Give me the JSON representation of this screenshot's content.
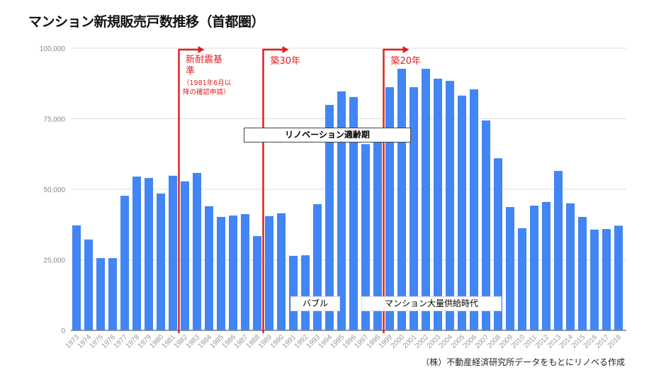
{
  "chart_data": {
    "type": "bar",
    "title": "マンション新規販売戸数推移（首都圏）",
    "xlabel": "",
    "ylabel": "",
    "ylim": [
      0,
      100000
    ],
    "yticks": [
      0,
      25000,
      50000,
      75000,
      100000
    ],
    "ytick_labels": [
      "0",
      "25,000",
      "50,000",
      "75,000",
      "100,000"
    ],
    "grid": true,
    "bar_color": "#4285f4",
    "categories": [
      "1973",
      "1974",
      "1975",
      "1976",
      "1977",
      "1978",
      "1979",
      "1980",
      "1981",
      "1982",
      "1983",
      "1984",
      "1985",
      "1986",
      "1987",
      "1988",
      "1989",
      "1990",
      "1991",
      "1992",
      "1993",
      "1994",
      "1995",
      "1996",
      "1997",
      "1998",
      "1999",
      "2000",
      "2001",
      "2002",
      "2003",
      "2004",
      "2005",
      "2006",
      "2007",
      "2008",
      "2009",
      "2010",
      "2011",
      "2012",
      "2013",
      "2014",
      "2015",
      "2016",
      "2017",
      "2018"
    ],
    "values": [
      37200,
      32200,
      25600,
      25600,
      47700,
      54500,
      54000,
      48500,
      54800,
      52800,
      55800,
      44000,
      40200,
      40700,
      41200,
      33400,
      40500,
      41500,
      26400,
      26600,
      44700,
      79900,
      84700,
      82700,
      66000,
      67000,
      86200,
      92700,
      86200,
      92700,
      89200,
      88400,
      83200,
      85400,
      74400,
      61000,
      43700,
      36200,
      44200,
      45500,
      56500,
      45000,
      40200,
      35700,
      35900,
      37100
    ],
    "markers": [
      {
        "after": "1981",
        "label": "新耐震基準",
        "note": "（1981年6月以降の確認申請）",
        "color": "#e02020"
      },
      {
        "after": "1988",
        "label": "築30年",
        "color": "#e02020"
      },
      {
        "after": "1998",
        "label": "築20年",
        "color": "#e02020"
      }
    ],
    "annotations": [
      "リノベーション適齢期",
      "バブル",
      "マンション大量供給時代"
    ]
  },
  "footer": "（株）不動産経済研究所データをもとにリノベる作成"
}
